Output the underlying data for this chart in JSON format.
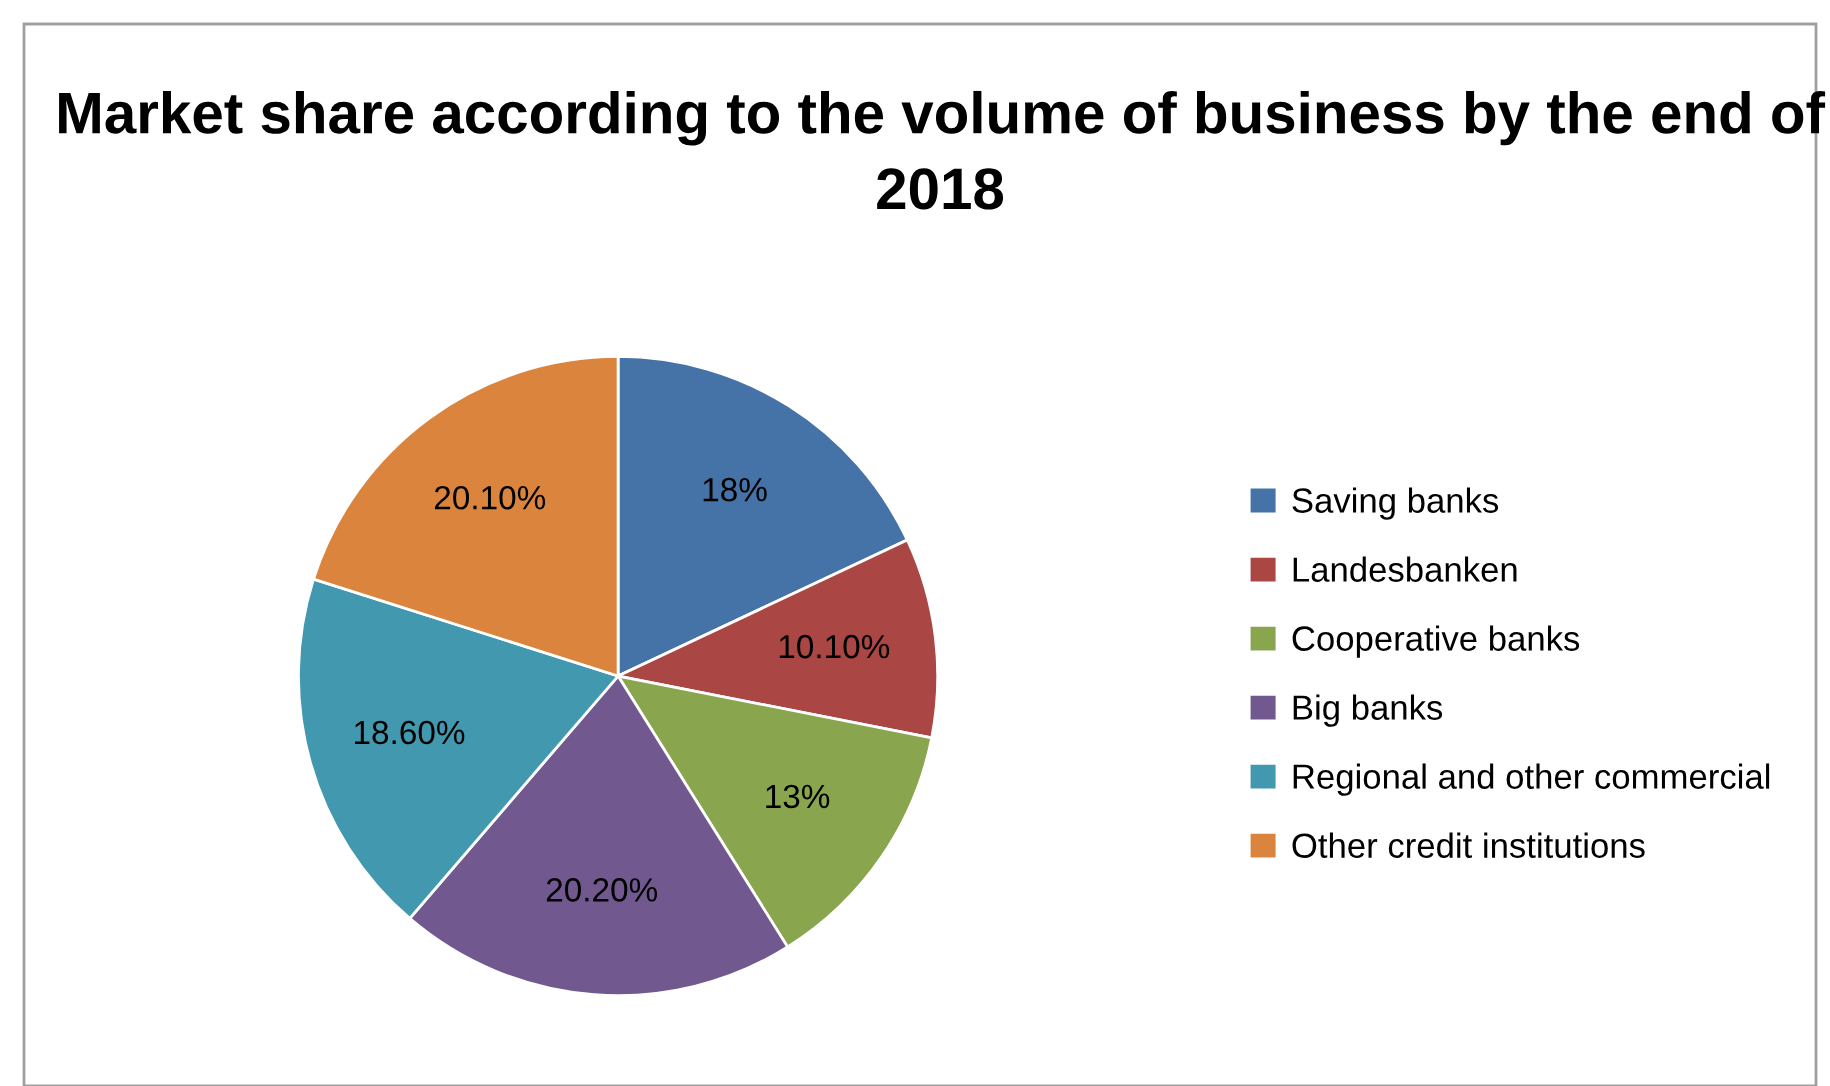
{
  "chart_data": {
    "type": "pie",
    "title": "Market share according to the volume of business by the end of 2018",
    "categories": [
      "Saving banks",
      "Landesbanken",
      "Cooperative banks",
      "Big banks",
      "Regional and other commercial",
      "Other credit institutions"
    ],
    "values": [
      18,
      10.1,
      13,
      20.2,
      18.6,
      20.1
    ],
    "value_labels": [
      "18%",
      "10.10%",
      "13%",
      "20.20%",
      "18.60%",
      "20.10%"
    ],
    "colors": [
      "#4572a7",
      "#aa4643",
      "#89a54e",
      "#71588f",
      "#4198af",
      "#db843d"
    ],
    "legend": "right"
  }
}
